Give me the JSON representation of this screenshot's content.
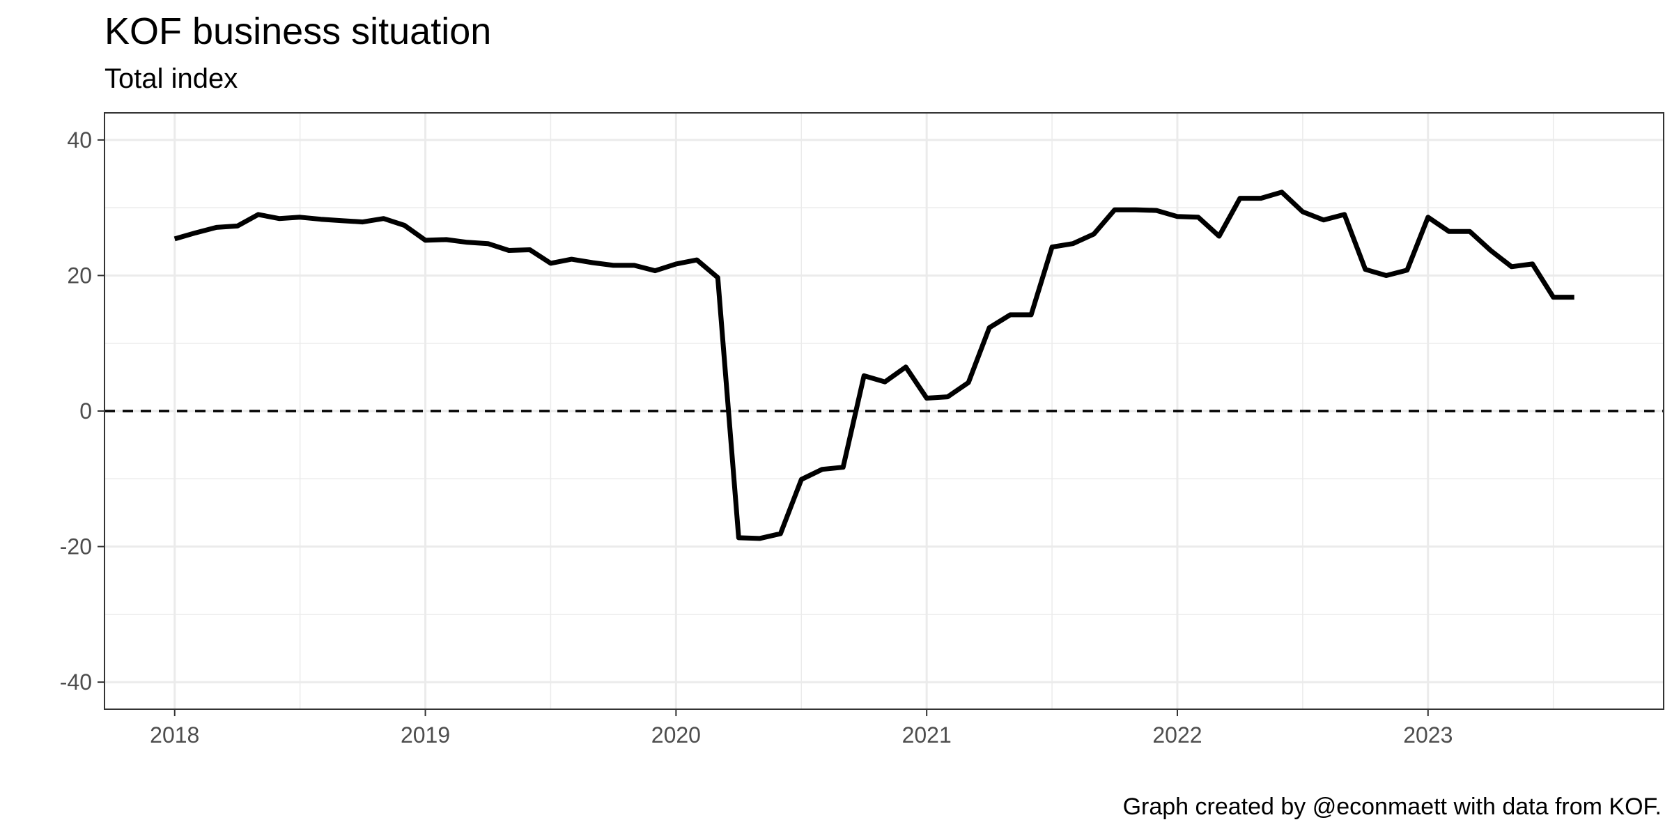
{
  "chart_data": {
    "type": "line",
    "title": "KOF business situation",
    "subtitle": "Total index",
    "caption": "Graph created by @econmaett with data from KOF.",
    "xlabel": "",
    "ylabel": "",
    "xlim": [
      2017.72,
      2023.94
    ],
    "ylim": [
      -44,
      44
    ],
    "x_ticks": [
      2018,
      2019,
      2020,
      2021,
      2022,
      2023
    ],
    "x_tick_labels": [
      "2018",
      "2019",
      "2020",
      "2021",
      "2022",
      "2023"
    ],
    "y_ticks": [
      -40,
      -20,
      0,
      20,
      40
    ],
    "y_tick_labels": [
      "-40",
      "-20",
      "0",
      "20",
      "40"
    ],
    "grid": true,
    "reference_line": {
      "y": 0,
      "style": "dashed"
    },
    "series": [
      {
        "color": "#000000",
        "start": "2018-01",
        "frequency": "monthly",
        "x": [
          "2018-01",
          "2018-02",
          "2018-03",
          "2018-04",
          "2018-05",
          "2018-06",
          "2018-07",
          "2018-08",
          "2018-09",
          "2018-10",
          "2018-11",
          "2018-12",
          "2019-01",
          "2019-02",
          "2019-03",
          "2019-04",
          "2019-05",
          "2019-06",
          "2019-07",
          "2019-08",
          "2019-09",
          "2019-10",
          "2019-11",
          "2019-12",
          "2020-01",
          "2020-02",
          "2020-03",
          "2020-04",
          "2020-05",
          "2020-06",
          "2020-07",
          "2020-08",
          "2020-09",
          "2020-10",
          "2020-11",
          "2020-12",
          "2021-01",
          "2021-02",
          "2021-03",
          "2021-04",
          "2021-05",
          "2021-06",
          "2021-07",
          "2021-08",
          "2021-09",
          "2021-10",
          "2021-11",
          "2021-12",
          "2022-01",
          "2022-02",
          "2022-03",
          "2022-04",
          "2022-05",
          "2022-06",
          "2022-07",
          "2022-08",
          "2022-09",
          "2022-10",
          "2022-11",
          "2022-12",
          "2023-01",
          "2023-02",
          "2023-03",
          "2023-04",
          "2023-05",
          "2023-06",
          "2023-07",
          "2023-08"
        ],
        "values": [
          25.4,
          26.3,
          27.1,
          27.3,
          29.0,
          28.4,
          28.6,
          28.3,
          28.1,
          27.9,
          28.4,
          27.4,
          25.2,
          25.3,
          24.9,
          24.7,
          23.7,
          23.8,
          21.8,
          22.4,
          21.9,
          21.5,
          21.5,
          20.7,
          21.7,
          22.3,
          19.7,
          -18.7,
          -18.8,
          -18.1,
          -10.1,
          -8.6,
          -8.3,
          5.2,
          4.3,
          6.5,
          1.9,
          2.1,
          4.2,
          12.3,
          14.2,
          14.2,
          24.2,
          24.7,
          26.1,
          29.7,
          29.7,
          29.6,
          28.7,
          28.6,
          25.8,
          31.4,
          31.4,
          32.3,
          29.4,
          28.2,
          29.0,
          20.9,
          20.0,
          20.8,
          28.6,
          26.5,
          26.5,
          23.7,
          21.3,
          21.7,
          16.8,
          16.8
        ]
      }
    ]
  }
}
